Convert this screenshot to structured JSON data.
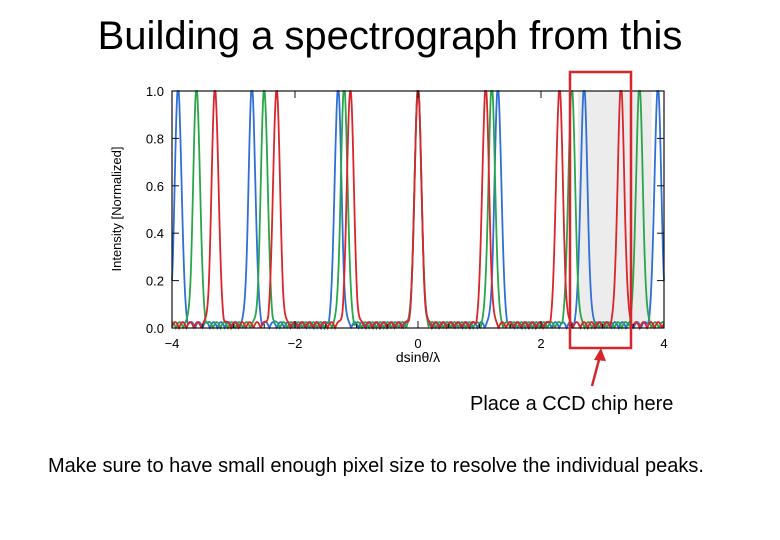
{
  "slide": {
    "title": "Building a spectrograph from this",
    "callout": "Place a CCD chip here",
    "note": "Make sure to have small enough pixel size to resolve the individual peaks."
  },
  "colors": {
    "blue": "#2f6fd6",
    "green": "#2aa64a",
    "red": "#d9252b",
    "highlight_box": "#d6252b",
    "shade": "#ececec"
  },
  "chart_data": {
    "type": "line",
    "title": "",
    "xlabel": "dsinθ/λ",
    "ylabel": "Intensity [Normalized]",
    "xlim": [
      -4,
      4
    ],
    "ylim": [
      0,
      1
    ],
    "x_ticks": [
      "−4",
      "−2",
      "0",
      "2",
      "4"
    ],
    "y_ticks": [
      "0.0",
      "0.2",
      "0.4",
      "0.6",
      "0.8",
      "1.0"
    ],
    "grid": false,
    "legend": "none",
    "series": [
      {
        "color": "#2f6fd6",
        "peaks_x": [
          -3.9,
          -2.7,
          -1.3,
          0.0,
          1.3,
          2.7,
          3.9
        ],
        "peak_y": 1.0
      },
      {
        "color": "#2aa64a",
        "peaks_x": [
          -3.6,
          -2.5,
          -1.2,
          0.0,
          1.2,
          2.5,
          3.6
        ],
        "peak_y": 1.0
      },
      {
        "color": "#d9252b",
        "peaks_x": [
          -3.3,
          -2.3,
          -1.1,
          0.0,
          1.1,
          2.3,
          3.3
        ],
        "peak_y": 1.0
      }
    ],
    "highlight_region_x": [
      2.6,
      3.8
    ]
  }
}
